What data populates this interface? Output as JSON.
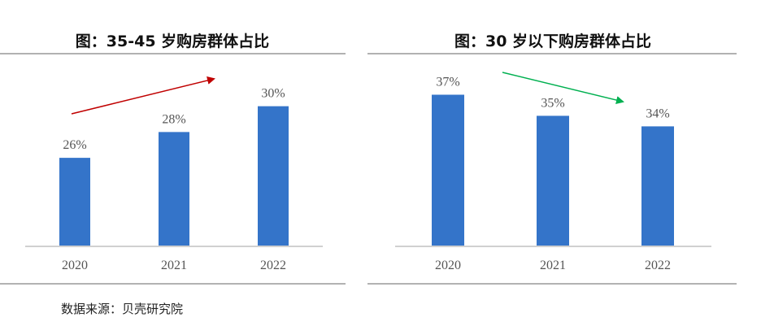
{
  "chart_data": [
    {
      "type": "bar",
      "title": "图：35-45 岁购房群体占比",
      "categories": [
        "2020",
        "2021",
        "2022"
      ],
      "values": [
        26,
        28,
        30
      ],
      "data_labels": [
        "26%",
        "28%",
        "30%"
      ],
      "ylim": [
        19.2,
        31.3
      ],
      "grid": false,
      "bar_color": "#3474C9",
      "trend_arrow": {
        "direction": "up",
        "color": "#C00000"
      }
    },
    {
      "type": "bar",
      "title": "图：30 岁以下购房群体占比",
      "categories": [
        "2020",
        "2021",
        "2022"
      ],
      "values": [
        37,
        35,
        34
      ],
      "data_labels": [
        "37%",
        "35%",
        "34%"
      ],
      "ylim": [
        22.7,
        37.5
      ],
      "grid": false,
      "bar_color": "#3474C9",
      "trend_arrow": {
        "direction": "down",
        "color": "#00B050"
      }
    }
  ],
  "source": "数据来源：贝壳研究院"
}
